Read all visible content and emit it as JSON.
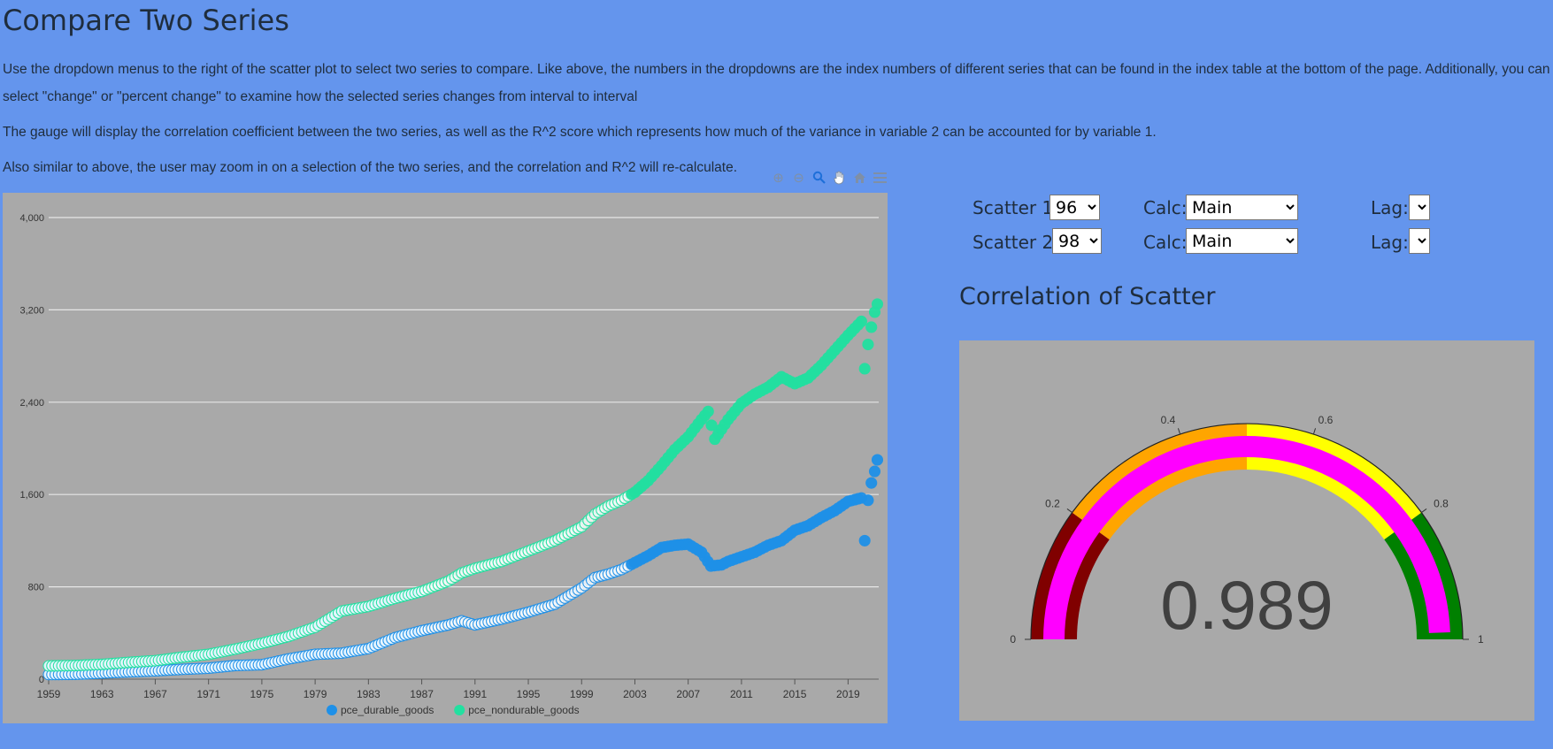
{
  "page": {
    "title": "Compare Two Series",
    "para1_line1": "Use the dropdown menus to the right of the scatter plot to select two series to compare. Like above, the numbers in the dropdowns are the index numbers of different series that can be found in the index table at the bottom of the page. Additionally, you can",
    "para1_line2": "select \"change\" or \"percent change\" to examine how the selected series changes from interval to interval",
    "para2": "The gauge will display the correlation coefficient between the two series, as well as the R^2 score which represents how much of the variance in variable 2 can be accounted for by variable 1.",
    "para3": "Also similar to above, the user may zoom in on a selection of the two series, and the correlation and R^2 will re-calculate."
  },
  "toolbar": {
    "icons": [
      "zoom-in-icon",
      "zoom-out-icon",
      "zoom-selection-icon",
      "pan-hand-icon",
      "reset-home-icon",
      "menu-icon"
    ]
  },
  "controls": {
    "scatter1_label": "Scatter 1:",
    "scatter1_value": "96",
    "scatter2_label": "Scatter 2:",
    "scatter2_value": "98",
    "calc_label": "Calc:",
    "calc1_value": "Main",
    "calc2_value": "Main",
    "lag_label": "Lag:",
    "lag1_value": "",
    "lag2_value": ""
  },
  "gauge": {
    "title": "Correlation of Scatter",
    "value": 0.989,
    "value_text": "0.989",
    "min": 0,
    "max": 1,
    "ticks": [
      "0",
      "0.2",
      "0.4",
      "0.6",
      "0.8",
      "1"
    ],
    "bands": [
      {
        "from": 0,
        "to": 0.2,
        "color": "#800000"
      },
      {
        "from": 0.2,
        "to": 0.5,
        "color": "#FFA500"
      },
      {
        "from": 0.5,
        "to": 0.8,
        "color": "#FFFF00"
      },
      {
        "from": 0.8,
        "to": 1.0,
        "color": "#008000"
      }
    ],
    "needle_color": "#FF00FF"
  },
  "colors": {
    "page_bg": "#6495ED",
    "panel_bg": "#A9A9A9",
    "series1": "#1E90E8",
    "series2": "#22E0A0"
  },
  "chart_data": {
    "type": "scatter",
    "title": "",
    "xlabel": "",
    "ylabel": "",
    "x_tick_labels": [
      "1959",
      "1963",
      "1967",
      "1971",
      "1975",
      "1979",
      "1983",
      "1987",
      "1991",
      "1995",
      "1999",
      "2003",
      "2007",
      "2011",
      "2015",
      "2019"
    ],
    "y_tick_labels": [
      "0",
      "800",
      "1,600",
      "2,400",
      "3,200",
      "4,000"
    ],
    "xlim": [
      1959,
      2021.3
    ],
    "ylim": [
      0,
      4000
    ],
    "grid": true,
    "legend_position": "bottom-center",
    "series": [
      {
        "name": "pce_durable_goods",
        "color": "#1E90E8",
        "points": [
          [
            1959,
            40
          ],
          [
            1961,
            42
          ],
          [
            1963,
            52
          ],
          [
            1965,
            63
          ],
          [
            1967,
            72
          ],
          [
            1969,
            85
          ],
          [
            1971,
            95
          ],
          [
            1973,
            118
          ],
          [
            1975,
            125
          ],
          [
            1977,
            175
          ],
          [
            1979,
            215
          ],
          [
            1981,
            225
          ],
          [
            1983,
            265
          ],
          [
            1985,
            360
          ],
          [
            1987,
            420
          ],
          [
            1989,
            470
          ],
          [
            1990,
            505
          ],
          [
            1991,
            470
          ],
          [
            1993,
            520
          ],
          [
            1995,
            580
          ],
          [
            1997,
            650
          ],
          [
            1999,
            790
          ],
          [
            2000,
            880
          ],
          [
            2001,
            910
          ],
          [
            2002,
            950
          ],
          [
            2003,
            1010
          ],
          [
            2004,
            1070
          ],
          [
            2005,
            1140
          ],
          [
            2006,
            1160
          ],
          [
            2007,
            1170
          ],
          [
            2008,
            1100
          ],
          [
            2008.7,
            980
          ],
          [
            2009.5,
            990
          ],
          [
            2010,
            1020
          ],
          [
            2011,
            1060
          ],
          [
            2012,
            1100
          ],
          [
            2013,
            1160
          ],
          [
            2014,
            1200
          ],
          [
            2015,
            1290
          ],
          [
            2016,
            1330
          ],
          [
            2017,
            1400
          ],
          [
            2018,
            1460
          ],
          [
            2019,
            1540
          ],
          [
            2020,
            1570
          ],
          [
            2020.25,
            1200
          ],
          [
            2020.5,
            1550
          ],
          [
            2020.75,
            1700
          ],
          [
            2021,
            1800
          ],
          [
            2021.2,
            1900
          ]
        ]
      },
      {
        "name": "pce_nondurable_goods",
        "color": "#22E0A0",
        "points": [
          [
            1959,
            115
          ],
          [
            1961,
            118
          ],
          [
            1963,
            128
          ],
          [
            1965,
            145
          ],
          [
            1967,
            160
          ],
          [
            1969,
            190
          ],
          [
            1971,
            215
          ],
          [
            1973,
            260
          ],
          [
            1975,
            310
          ],
          [
            1977,
            370
          ],
          [
            1979,
            450
          ],
          [
            1981,
            590
          ],
          [
            1983,
            630
          ],
          [
            1985,
            700
          ],
          [
            1987,
            760
          ],
          [
            1989,
            850
          ],
          [
            1990,
            920
          ],
          [
            1991,
            960
          ],
          [
            1993,
            1020
          ],
          [
            1995,
            1110
          ],
          [
            1997,
            1200
          ],
          [
            1999,
            1320
          ],
          [
            2000,
            1430
          ],
          [
            2001,
            1500
          ],
          [
            2002,
            1550
          ],
          [
            2003,
            1620
          ],
          [
            2004,
            1720
          ],
          [
            2005,
            1850
          ],
          [
            2006,
            1990
          ],
          [
            2007,
            2100
          ],
          [
            2008,
            2250
          ],
          [
            2008.5,
            2320
          ],
          [
            2009,
            2080
          ],
          [
            2010,
            2250
          ],
          [
            2011,
            2390
          ],
          [
            2012,
            2470
          ],
          [
            2013,
            2530
          ],
          [
            2014,
            2620
          ],
          [
            2015,
            2560
          ],
          [
            2016,
            2610
          ],
          [
            2017,
            2720
          ],
          [
            2018,
            2850
          ],
          [
            2019,
            2980
          ],
          [
            2020,
            3100
          ],
          [
            2020.25,
            2690
          ],
          [
            2020.5,
            2900
          ],
          [
            2020.75,
            3050
          ],
          [
            2021,
            3180
          ],
          [
            2021.2,
            3250
          ]
        ]
      }
    ]
  }
}
